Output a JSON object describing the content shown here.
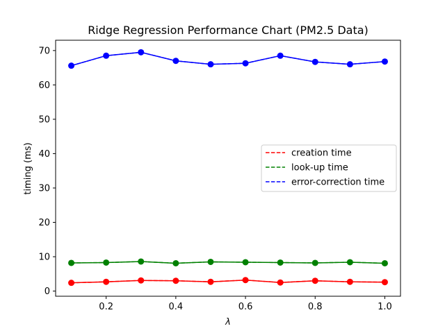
{
  "chart_data": {
    "type": "line",
    "title": "Ridge Regression Performance Chart (PM2.5 Data)",
    "xlabel": "λ",
    "ylabel": "timing (ms)",
    "xlim": [
      0.055,
      1.045
    ],
    "ylim": [
      -1.5,
      73.0
    ],
    "xticks": [
      0.2,
      0.4,
      0.6,
      0.8,
      1.0
    ],
    "xtick_labels": [
      "0.2",
      "0.4",
      "0.6",
      "0.8",
      "1.0"
    ],
    "yticks": [
      0,
      10,
      20,
      30,
      40,
      50,
      60,
      70
    ],
    "ytick_labels": [
      "0",
      "10",
      "20",
      "30",
      "40",
      "50",
      "60",
      "70"
    ],
    "grid": false,
    "legend_position": "center-right",
    "x": [
      0.1,
      0.2,
      0.3,
      0.4,
      0.5,
      0.6,
      0.7,
      0.8,
      0.9,
      1.0
    ],
    "series": [
      {
        "name": "creation time",
        "color": "#ff0000",
        "values": [
          2.4,
          2.7,
          3.1,
          3.0,
          2.7,
          3.2,
          2.5,
          3.0,
          2.7,
          2.6
        ]
      },
      {
        "name": "look-up time",
        "color": "#008000",
        "values": [
          8.2,
          8.3,
          8.6,
          8.1,
          8.5,
          8.4,
          8.3,
          8.2,
          8.4,
          8.1
        ]
      },
      {
        "name": "error-correction time",
        "color": "#0000ff",
        "values": [
          65.6,
          68.5,
          69.5,
          67.0,
          66.0,
          66.3,
          68.5,
          66.7,
          66.0,
          66.8
        ]
      }
    ]
  }
}
